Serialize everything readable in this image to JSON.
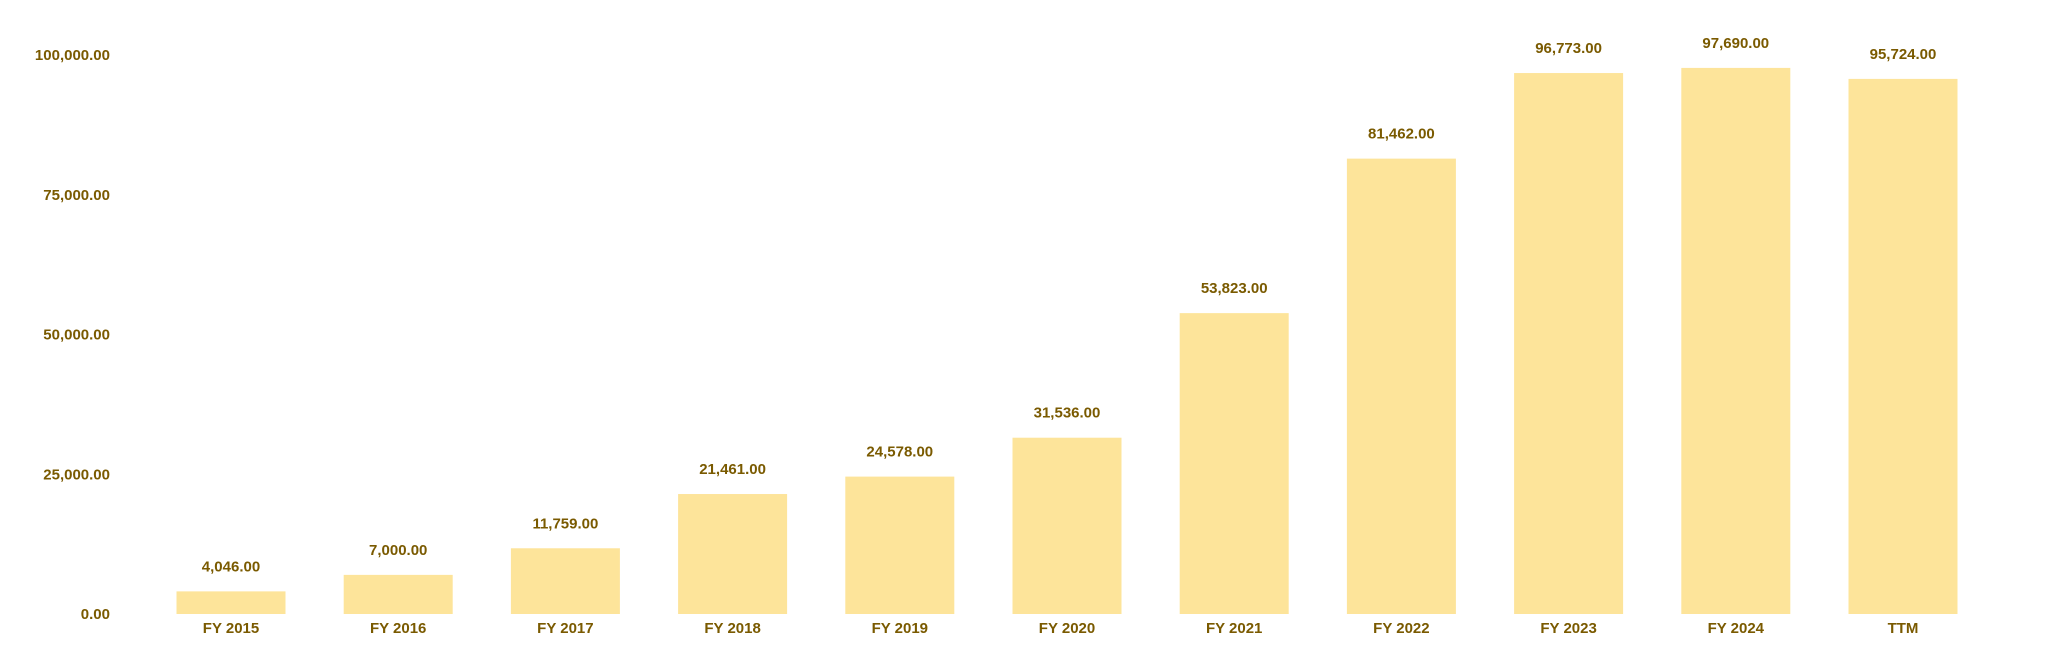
{
  "chart_data": {
    "type": "bar",
    "title": "",
    "xlabel": "",
    "ylabel": "",
    "categories": [
      "FY 2015",
      "FY 2016",
      "FY 2017",
      "FY 2018",
      "FY 2019",
      "FY 2020",
      "FY 2021",
      "FY 2022",
      "FY 2023",
      "FY 2024",
      "TTM"
    ],
    "values": [
      4046,
      7000,
      11759,
      21461,
      24578,
      31536,
      53823,
      81462,
      96773,
      97690,
      95724
    ],
    "value_labels": [
      "4,046.00",
      "7,000.00",
      "11,759.00",
      "21,461.00",
      "24,578.00",
      "31,536.00",
      "53,823.00",
      "81,462.00",
      "96,773.00",
      "97,690.00",
      "95,724.00"
    ],
    "y_ticks": [
      0,
      25000,
      50000,
      75000,
      100000
    ],
    "y_tick_labels": [
      "0.00",
      "25,000.00",
      "50,000.00",
      "75,000.00",
      "100,000.00"
    ],
    "ylim": [
      0,
      100000
    ],
    "grid": false,
    "legend": "none",
    "colors": {
      "bar": "#fde49a",
      "text": "#7a5a00"
    }
  }
}
